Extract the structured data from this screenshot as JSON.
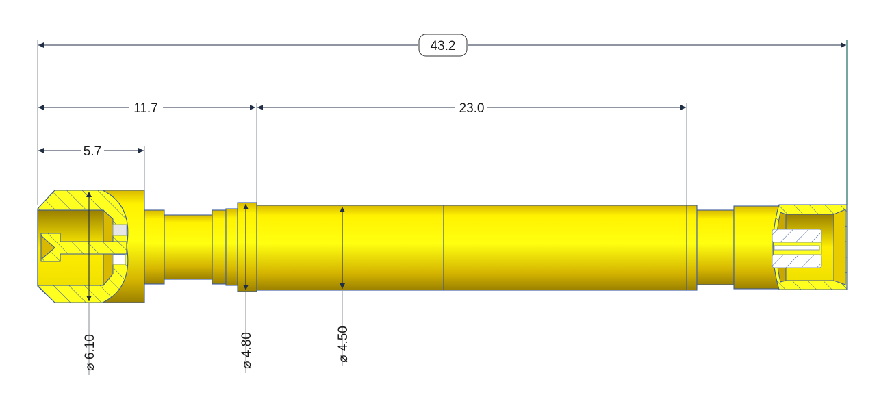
{
  "dimensions": {
    "overall_length": "43.2",
    "collar_position": "11.7",
    "body_length": "23.0",
    "head_length": "5.7",
    "head_diameter": "⌀ 6.10",
    "collar_diameter": "⌀ 4.80",
    "body_diameter": "⌀ 4.50"
  },
  "colors": {
    "part": "#ffff00",
    "part_shadow": "#9a8000",
    "outline": "#3a5aa0",
    "dimension_line": "#1f2d45"
  }
}
